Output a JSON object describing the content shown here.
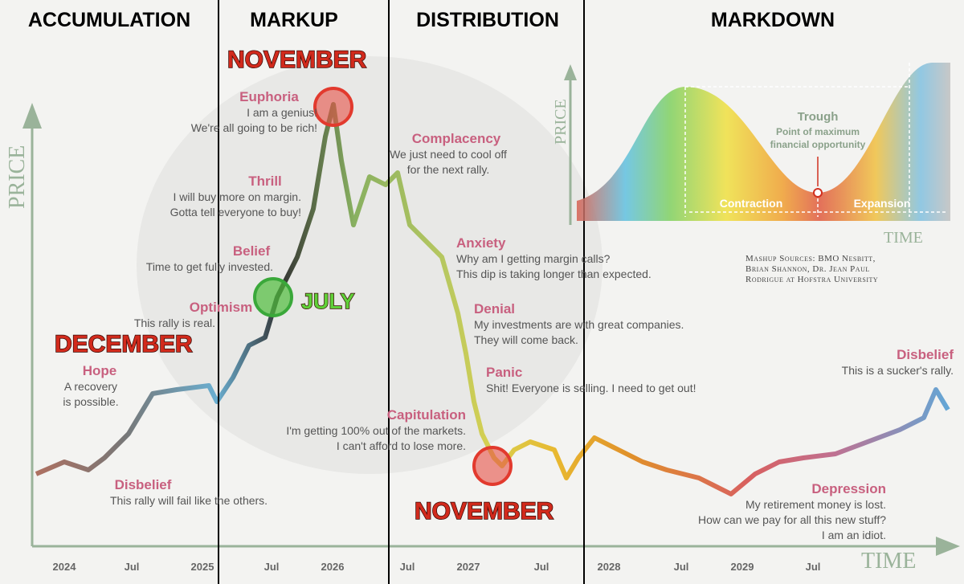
{
  "phases": [
    "ACCUMULATION",
    "MARKUP",
    "DISTRIBUTION",
    "MARKDOWN"
  ],
  "callouts": [
    "NOVEMBER",
    "JULY",
    "DECEMBER",
    "NOVEMBER"
  ],
  "emotions": [
    {
      "label": "Hope",
      "lines": [
        "A recovery",
        "is possible."
      ]
    },
    {
      "label": "Disbelief",
      "lines": [
        "This rally will fail like the others."
      ]
    },
    {
      "label": "Optimism",
      "lines": [
        "This rally is real."
      ]
    },
    {
      "label": "Belief",
      "lines": [
        "Time to get fully invested."
      ]
    },
    {
      "label": "Thrill",
      "lines": [
        "I will buy more on margin.",
        "Gotta tell everyone to buy!"
      ]
    },
    {
      "label": "Euphoria",
      "lines": [
        "I am a genius!",
        "We're all going to be rich!"
      ]
    },
    {
      "label": "Complacency",
      "lines": [
        "We just need to cool off",
        "for the next rally."
      ]
    },
    {
      "label": "Anxiety",
      "lines": [
        "Why am I getting margin calls?",
        "This dip is taking longer than expected."
      ]
    },
    {
      "label": "Denial",
      "lines": [
        "My investments are with great companies.",
        "They will come back."
      ]
    },
    {
      "label": "Panic",
      "lines": [
        "Shit! Everyone is selling. I need to get out!"
      ]
    },
    {
      "label": "Capitulation",
      "lines": [
        "I'm getting 100% out of the markets.",
        "I can't afford to lose more."
      ]
    },
    {
      "label": "Depression",
      "lines": [
        "My retirement money is lost.",
        "How can we pay for all this new stuff?",
        "I am an idiot."
      ]
    },
    {
      "label": "Disbelief",
      "lines": [
        "This is a sucker's rally."
      ]
    }
  ],
  "axis": {
    "y_label": "PRICE",
    "x_label": "TIME",
    "x_labels": [
      "2024",
      "Jul",
      "2025",
      "Jul",
      "2026",
      "Jul",
      "2027",
      "Jul",
      "2028",
      "Jul",
      "2029",
      "Jul"
    ]
  },
  "inset": {
    "y_label": "PRICE",
    "x_label": "TIME",
    "trough": "Trough",
    "trough_note": [
      "Point of maximum",
      "financial opportunity"
    ],
    "contraction": "Contraction",
    "expansion": "Expansion"
  },
  "sources": [
    "Mashup Sources: BMO Nesbitt,",
    "Brian Shannon, Dr. Jean Paul",
    "Rodrigue at Hofstra University"
  ]
}
